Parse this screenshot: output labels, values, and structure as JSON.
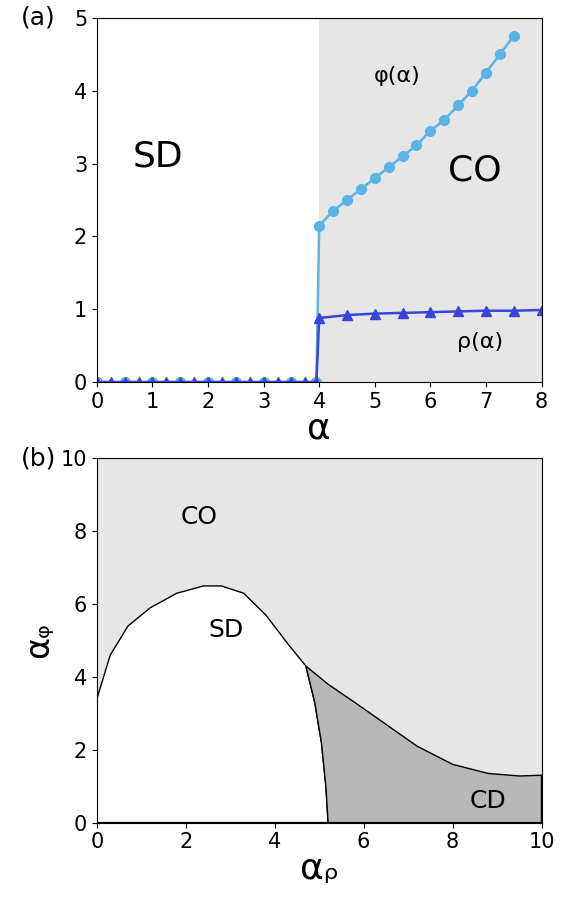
{
  "chart_data": [
    {
      "type": "line",
      "panel": "(a)",
      "x_label": "α",
      "xlim": [
        0,
        8
      ],
      "xticks": [
        0,
        1,
        2,
        3,
        4,
        5,
        6,
        7,
        8
      ],
      "ylim": [
        0,
        5
      ],
      "yticks": [
        0,
        1,
        2,
        3,
        4,
        5
      ],
      "shaded_region": {
        "name": "CO",
        "x": [
          4,
          8
        ],
        "color": "#e6e6e6"
      },
      "annotations": [
        {
          "text": "SD",
          "x": 1.1,
          "y": 3.1
        },
        {
          "text": "CO",
          "x": 6.8,
          "y": 2.9
        },
        {
          "text": "φ(α)",
          "x": 5.4,
          "y": 4.2
        },
        {
          "text": "ρ(α)",
          "x": 6.9,
          "y": 0.55
        }
      ],
      "series": [
        {
          "name": "φ(α)",
          "color": "#5ab4e5",
          "marker": "circle",
          "line_style": "solid",
          "x": [
            0,
            0.5,
            1,
            1.5,
            2,
            2.5,
            3,
            3.5,
            3.95,
            4.0,
            4.25,
            4.5,
            4.75,
            5.0,
            5.25,
            5.5,
            5.75,
            6.0,
            6.25,
            6.5,
            6.75,
            7.0,
            7.25,
            7.5
          ],
          "values": [
            0,
            0,
            0,
            0,
            0,
            0,
            0,
            0,
            0,
            2.15,
            2.35,
            2.5,
            2.65,
            2.8,
            2.95,
            3.1,
            3.25,
            3.45,
            3.6,
            3.8,
            4.0,
            4.25,
            4.5,
            4.75
          ]
        },
        {
          "name": "ρ(α)",
          "color": "#3a45d8",
          "marker": "triangle",
          "line_style": "solid",
          "x": [
            0,
            0.25,
            0.5,
            0.75,
            1,
            1.25,
            1.5,
            1.75,
            2,
            2.25,
            2.5,
            2.75,
            3,
            3.25,
            3.5,
            3.75,
            3.95,
            4.0,
            4.5,
            5.0,
            5.5,
            6.0,
            6.5,
            7.0,
            7.5,
            8.0
          ],
          "values": [
            0,
            0,
            0,
            0,
            0,
            0,
            0,
            0,
            0,
            0,
            0,
            0,
            0,
            0,
            0,
            0,
            0,
            0.88,
            0.92,
            0.94,
            0.95,
            0.96,
            0.97,
            0.98,
            0.98,
            0.99
          ]
        }
      ]
    },
    {
      "type": "phase_diagram",
      "panel": "(b)",
      "x_label": "αᵨ",
      "y_label": "αᵩ",
      "xlim": [
        0,
        10
      ],
      "xticks": [
        0,
        2,
        4,
        6,
        8,
        10
      ],
      "ylim": [
        0,
        10
      ],
      "yticks": [
        0,
        2,
        4,
        6,
        8,
        10
      ],
      "background": {
        "name": "CO",
        "color": "#e6e6e6"
      },
      "regions": [
        {
          "name": "SD",
          "color": "#ffffff",
          "x": [
            0,
            0,
            0.3,
            0.7,
            1.2,
            1.8,
            2.4,
            2.8,
            3.3,
            3.8,
            4.3,
            4.7,
            4.9,
            5.05,
            5.15,
            5.2
          ],
          "y": [
            0,
            3.4,
            4.6,
            5.4,
            5.9,
            6.3,
            6.5,
            6.5,
            6.3,
            5.7,
            4.9,
            4.3,
            3.3,
            2.2,
            1.0,
            0
          ]
        },
        {
          "name": "CD",
          "color": "#b8b8b8",
          "x": [
            4.7,
            4.9,
            5.05,
            5.15,
            5.2,
            10,
            10,
            9.5,
            8.8,
            8,
            7.2,
            6.5,
            5.8,
            5.2
          ],
          "y": [
            4.3,
            3.3,
            2.2,
            1.0,
            0,
            0,
            1.3,
            1.28,
            1.35,
            1.6,
            2.1,
            2.7,
            3.3,
            3.8
          ]
        }
      ],
      "annotations": [
        {
          "text": "CO",
          "x": 2.3,
          "y": 8.4
        },
        {
          "text": "SD",
          "x": 2.9,
          "y": 5.3
        },
        {
          "text": "CD",
          "x": 8.8,
          "y": 0.6
        }
      ]
    }
  ]
}
